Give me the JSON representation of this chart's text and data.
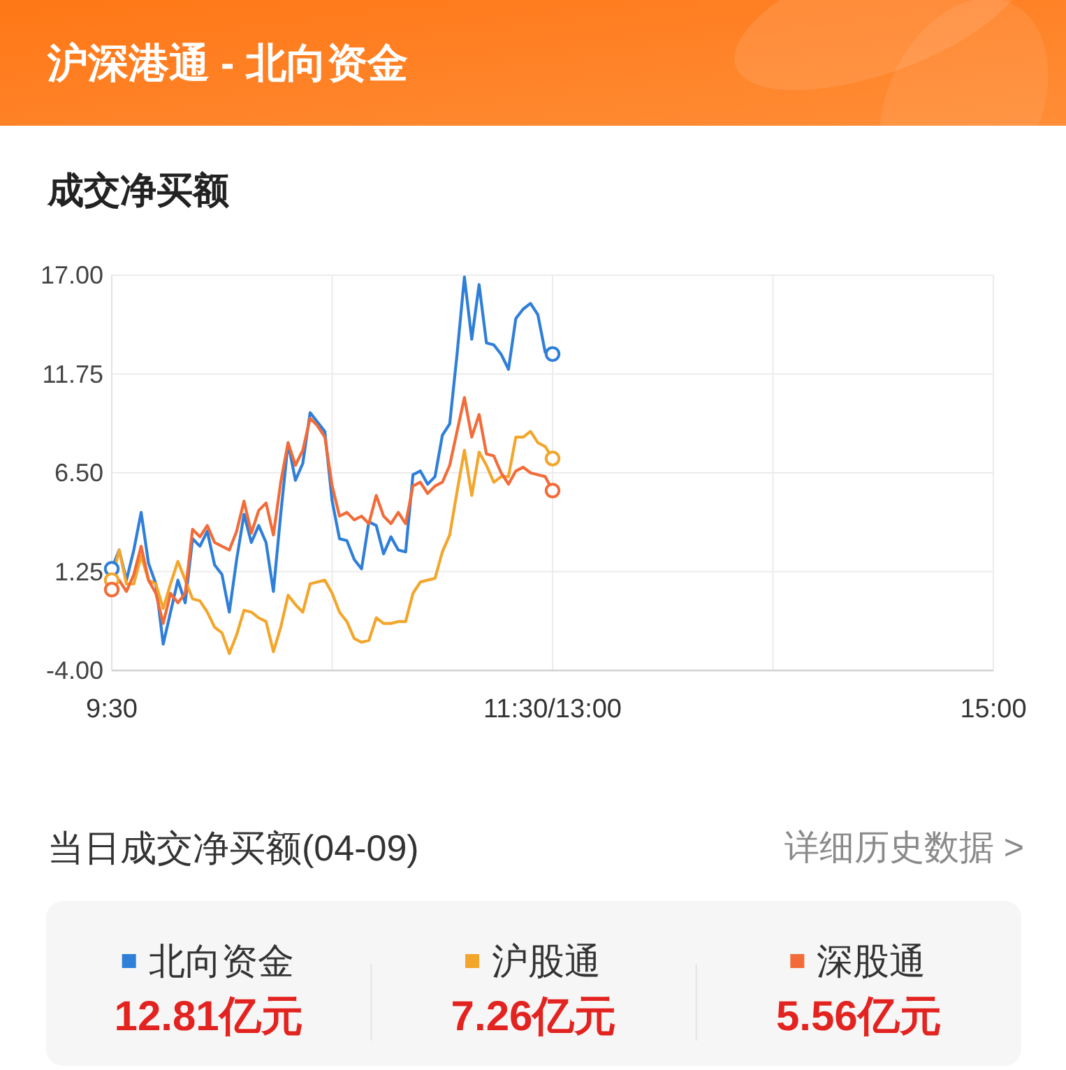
{
  "chart_data": {
    "type": "line",
    "title": "沪深港通 - 北向资金",
    "subtitle": "成交净买额",
    "categories": [
      "9:30",
      null,
      null,
      null,
      null,
      null,
      null,
      null,
      null,
      null,
      null,
      null,
      null,
      null,
      null,
      null,
      null,
      null,
      null,
      null,
      null,
      null,
      null,
      null,
      null,
      null,
      null,
      null,
      null,
      null,
      null,
      null,
      null,
      null,
      null,
      null,
      null,
      null,
      null,
      null,
      null,
      null,
      null,
      null,
      null,
      null,
      null,
      null,
      null,
      null,
      null,
      null,
      null,
      null,
      null,
      null,
      null,
      null,
      null,
      null,
      "11:30/13:00",
      null,
      null,
      null,
      null,
      null,
      null,
      null,
      null,
      null,
      null,
      null,
      null,
      null,
      null,
      null,
      null,
      null,
      null,
      null,
      null,
      null,
      null,
      null,
      null,
      null,
      null,
      null,
      null,
      null,
      null,
      null,
      null,
      null,
      null,
      null,
      null,
      null,
      null,
      null,
      null,
      null,
      null,
      null,
      null,
      null,
      null,
      null,
      null,
      null,
      null,
      null,
      null,
      null,
      null,
      null,
      null,
      null,
      null,
      null,
      "15:00"
    ],
    "ylim": [
      -4,
      17
    ],
    "yticks": [
      {
        "value": -4,
        "label": "-4.00"
      },
      {
        "value": 1.25,
        "label": "1.25"
      },
      {
        "value": 6.5,
        "label": "6.50"
      },
      11.75,
      {
        "value": 17,
        "label": "17.00"
      }
    ],
    "grid": true,
    "legend": "bottom",
    "line_style": "solid",
    "series": [
      {
        "name": "北向资金",
        "color": "#2f7fd9",
        "values": [
          1.4,
          2.4,
          0.8,
          2.4,
          4.4,
          1.7,
          0.6,
          -2.6,
          -0.9,
          0.8,
          -0.4,
          3.0,
          2.6,
          3.4,
          1.6,
          1.1,
          -0.9,
          1.9,
          4.3,
          2.8,
          3.7,
          2.8,
          0.2,
          4.3,
          8.1,
          6.1,
          7.0,
          9.7,
          9.2,
          8.7,
          5.0,
          3.0,
          2.9,
          1.9,
          1.4,
          3.9,
          3.7,
          2.2,
          3.1,
          2.4,
          2.3,
          6.4,
          6.6,
          5.9,
          6.3,
          8.5,
          9.1,
          12.8,
          16.9,
          13.6,
          16.5,
          13.4,
          13.3,
          12.8,
          12.0,
          14.7,
          15.2,
          15.5,
          14.9,
          12.9,
          12.81,
          null,
          null,
          null,
          null,
          null,
          null,
          null,
          null,
          null,
          null,
          null,
          null,
          null,
          null,
          null,
          null,
          null,
          null,
          null,
          null,
          null,
          null,
          null,
          null,
          null,
          null,
          null,
          null,
          null,
          null,
          null,
          null,
          null,
          null,
          null,
          null,
          null,
          null,
          null,
          null,
          null,
          null,
          null,
          null,
          null,
          null,
          null,
          null,
          null,
          null,
          null,
          null,
          null,
          null,
          null,
          null,
          null,
          null,
          null,
          null
        ]
      },
      {
        "name": "沪股通",
        "color": "#f3a62c",
        "values": [
          0.8,
          2.4,
          0.6,
          0.6,
          2.1,
          0.8,
          0.6,
          -0.7,
          0.6,
          1.8,
          0.8,
          -0.2,
          -0.3,
          -0.9,
          -1.7,
          -2.0,
          -3.1,
          -2.1,
          -0.8,
          -0.9,
          -1.2,
          -1.4,
          -3.0,
          -1.7,
          0.0,
          -0.5,
          -0.9,
          0.6,
          0.7,
          0.8,
          0.1,
          -0.9,
          -1.4,
          -2.3,
          -2.5,
          -2.4,
          -1.2,
          -1.5,
          -1.5,
          -1.4,
          -1.4,
          0.1,
          0.7,
          0.8,
          0.9,
          2.3,
          3.2,
          5.5,
          7.7,
          5.3,
          7.6,
          6.9,
          6.0,
          6.3,
          6.3,
          8.4,
          8.4,
          8.7,
          8.1,
          7.9,
          7.26,
          null,
          null,
          null,
          null,
          null,
          null,
          null,
          null,
          null,
          null,
          null,
          null,
          null,
          null,
          null,
          null,
          null,
          null,
          null,
          null,
          null,
          null,
          null,
          null,
          null,
          null,
          null,
          null,
          null,
          null,
          null,
          null,
          null,
          null,
          null,
          null,
          null,
          null,
          null,
          null,
          null,
          null,
          null,
          null,
          null,
          null,
          null,
          null,
          null,
          null,
          null,
          null,
          null,
          null,
          null,
          null,
          null,
          null,
          null,
          null
        ]
      },
      {
        "name": "深股通",
        "color": "#f26b38",
        "values": [
          0.3,
          0.8,
          0.2,
          1.1,
          2.6,
          0.8,
          0.1,
          -1.5,
          0.1,
          -0.4,
          0.1,
          3.5,
          3.1,
          3.7,
          2.8,
          2.6,
          2.4,
          3.4,
          5.0,
          3.3,
          4.5,
          4.9,
          3.2,
          6.0,
          8.1,
          6.9,
          7.7,
          9.4,
          9.0,
          8.4,
          5.8,
          4.2,
          4.4,
          4.0,
          4.2,
          3.8,
          5.3,
          4.2,
          3.8,
          4.4,
          3.8,
          5.8,
          6.0,
          5.4,
          5.8,
          6.0,
          6.9,
          8.7,
          10.5,
          8.4,
          9.6,
          7.5,
          7.4,
          6.5,
          5.9,
          6.6,
          6.8,
          6.5,
          6.4,
          6.3,
          5.56,
          null,
          null,
          null,
          null,
          null,
          null,
          null,
          null,
          null,
          null,
          null,
          null,
          null,
          null,
          null,
          null,
          null,
          null,
          null,
          null,
          null,
          null,
          null,
          null,
          null,
          null,
          null,
          null,
          null,
          null,
          null,
          null,
          null,
          null,
          null,
          null,
          null,
          null,
          null,
          null,
          null,
          null,
          null,
          null,
          null,
          null,
          null,
          null,
          null,
          null,
          null,
          null,
          null,
          null,
          null,
          null,
          null,
          null,
          null,
          null
        ]
      },
      {
        "type": "scatter",
        "marker": "circle",
        "color": "#2f7fd9",
        "values": [
          1.4,
          null,
          null,
          null,
          null,
          null,
          null,
          null,
          null,
          null,
          null,
          null,
          null,
          null,
          null,
          null,
          null,
          null,
          null,
          null,
          null,
          null,
          null,
          null,
          null,
          null,
          null,
          null,
          null,
          null,
          null,
          null,
          null,
          null,
          null,
          null,
          null,
          null,
          null,
          null,
          null,
          null,
          null,
          null,
          null,
          null,
          null,
          null,
          null,
          null,
          null,
          null,
          null,
          null,
          null,
          null,
          null,
          null,
          null,
          null,
          12.81,
          null,
          null,
          null,
          null,
          null,
          null,
          null,
          null,
          null,
          null,
          null,
          null,
          null,
          null,
          null,
          null,
          null,
          null,
          null,
          null,
          null,
          null,
          null,
          null,
          null,
          null,
          null,
          null,
          null,
          null,
          null,
          null,
          null,
          null,
          null,
          null,
          null,
          null,
          null,
          null,
          null,
          null,
          null,
          null,
          null,
          null,
          null,
          null,
          null,
          null,
          null,
          null,
          null,
          null,
          null,
          null,
          null,
          null,
          null,
          null
        ]
      },
      {
        "type": "scatter",
        "marker": "circle",
        "color": "#f3a62c",
        "values": [
          0.8,
          null,
          null,
          null,
          null,
          null,
          null,
          null,
          null,
          null,
          null,
          null,
          null,
          null,
          null,
          null,
          null,
          null,
          null,
          null,
          null,
          null,
          null,
          null,
          null,
          null,
          null,
          null,
          null,
          null,
          null,
          null,
          null,
          null,
          null,
          null,
          null,
          null,
          null,
          null,
          null,
          null,
          null,
          null,
          null,
          null,
          null,
          null,
          null,
          null,
          null,
          null,
          null,
          null,
          null,
          null,
          null,
          null,
          null,
          null,
          7.26,
          null,
          null,
          null,
          null,
          null,
          null,
          null,
          null,
          null,
          null,
          null,
          null,
          null,
          null,
          null,
          null,
          null,
          null,
          null,
          null,
          null,
          null,
          null,
          null,
          null,
          null,
          null,
          null,
          null,
          null,
          null,
          null,
          null,
          null,
          null,
          null,
          null,
          null,
          null,
          null,
          null,
          null,
          null,
          null,
          null,
          null,
          null,
          null,
          null,
          null,
          null,
          null,
          null,
          null,
          null,
          null,
          null,
          null,
          null,
          null
        ]
      },
      {
        "type": "scatter",
        "marker": "circle",
        "color": "#f26b38",
        "values": [
          0.3,
          null,
          null,
          null,
          null,
          null,
          null,
          null,
          null,
          null,
          null,
          null,
          null,
          null,
          null,
          null,
          null,
          null,
          null,
          null,
          null,
          null,
          null,
          null,
          null,
          null,
          null,
          null,
          null,
          null,
          null,
          null,
          null,
          null,
          null,
          null,
          null,
          null,
          null,
          null,
          null,
          null,
          null,
          null,
          null,
          null,
          null,
          null,
          null,
          null,
          null,
          null,
          null,
          null,
          null,
          null,
          null,
          null,
          null,
          null,
          5.56,
          null,
          null,
          null,
          null,
          null,
          null,
          null,
          null,
          null,
          null,
          null,
          null,
          null,
          null,
          null,
          null,
          null,
          null,
          null,
          null,
          null,
          null,
          null,
          null,
          null,
          null,
          null,
          null,
          null,
          null,
          null,
          null,
          null,
          null,
          null,
          null,
          null,
          null,
          null,
          null,
          null,
          null,
          null,
          null,
          null,
          null,
          null,
          null,
          null,
          null,
          null,
          null,
          null,
          null,
          null,
          null,
          null,
          null,
          null,
          null
        ]
      }
    ],
    "annotations": [
      "当日成交净买额(04-09)",
      "详细历史数据 >",
      "12.81亿元",
      "7.26亿元",
      "5.56亿元"
    ]
  }
}
